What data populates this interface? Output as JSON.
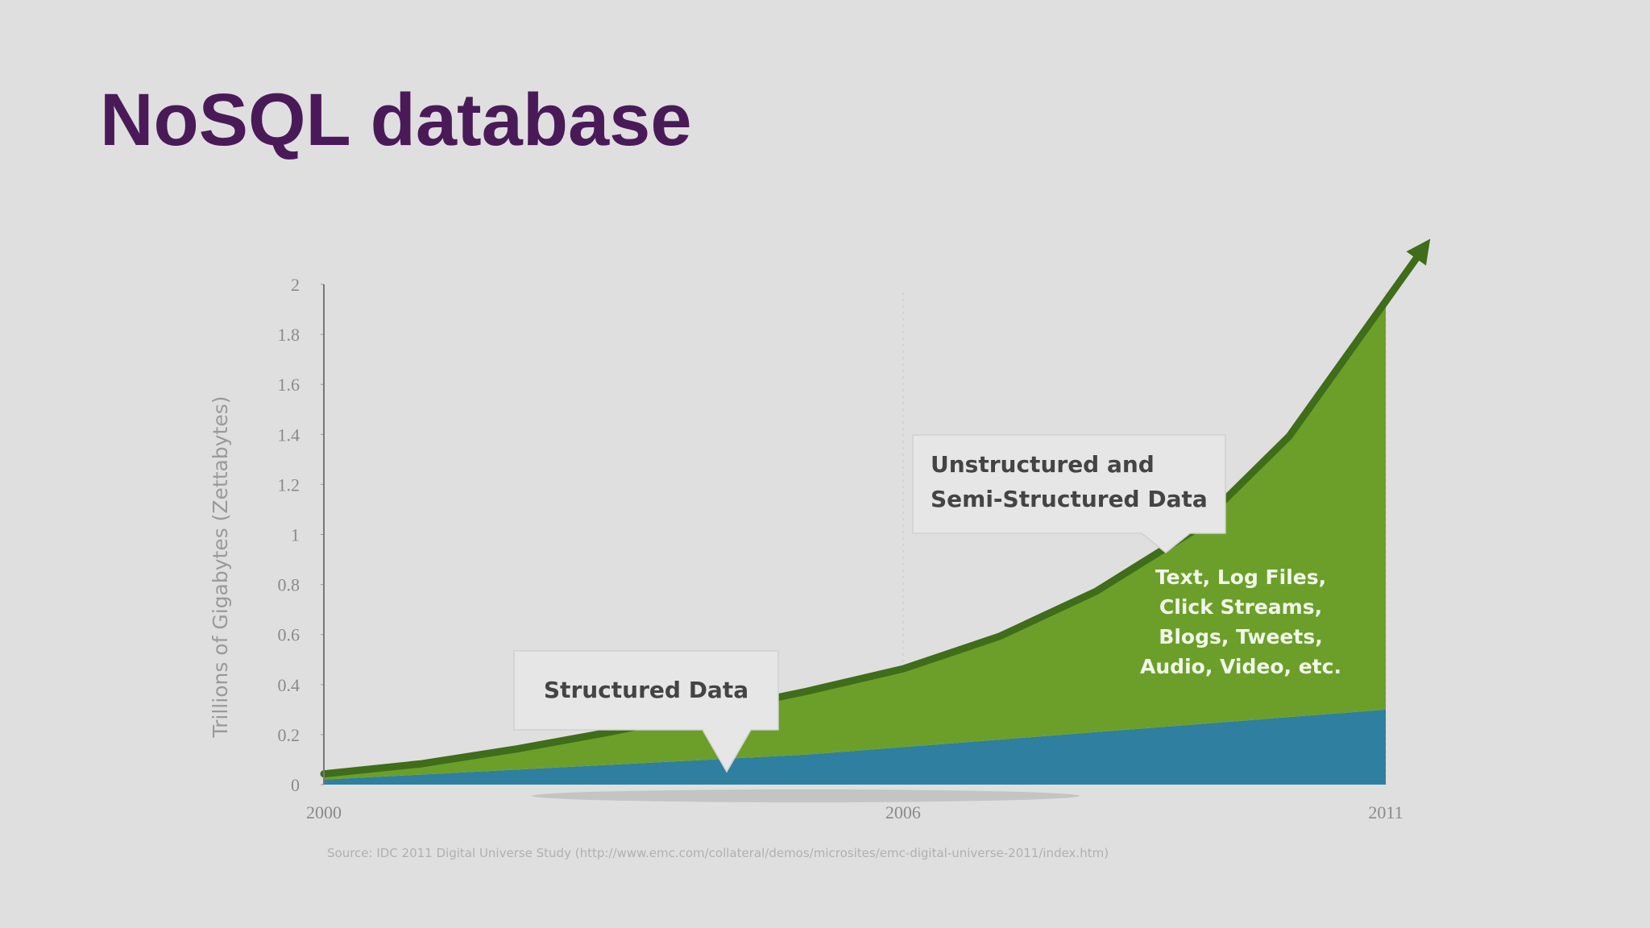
{
  "title": "NoSQL database",
  "chart_data": {
    "type": "stacked-area",
    "y_label": "Trillions of Gigabytes (Zettabytes)",
    "x": [
      2000,
      2001,
      2002,
      2003,
      2004,
      2005,
      2006,
      2007,
      2008,
      2009,
      2010,
      2011
    ],
    "xlim": [
      2000,
      2011
    ],
    "xticks": [
      2000,
      2006,
      2011
    ],
    "ylim": [
      0,
      2
    ],
    "yticks": [
      0,
      0.2,
      0.4,
      0.6,
      0.8,
      1,
      1.2,
      1.4,
      1.6,
      1.8,
      2
    ],
    "series": [
      {
        "name": "Structured Data",
        "color": "#2e7fa0",
        "values": [
          0.02,
          0.04,
          0.06,
          0.08,
          0.1,
          0.12,
          0.15,
          0.18,
          0.21,
          0.24,
          0.27,
          0.3
        ]
      },
      {
        "name": [
          "Unstructured and",
          "Semi-Structured Data"
        ],
        "color": "#6b9f2a",
        "values": [
          0.01,
          0.03,
          0.07,
          0.12,
          0.18,
          0.24,
          0.3,
          0.4,
          0.55,
          0.76,
          1.11,
          1.62
        ]
      }
    ],
    "annotation": [
      "Text, Log Files,",
      "Click Streams,",
      "Blogs, Tweets,",
      "Audio, Video, etc."
    ],
    "source": "Source: IDC 2011 Digital Universe Study (http://www.emc.com/collateral/demos/microsites/emc-digital-universe-2011/index.htm)"
  }
}
